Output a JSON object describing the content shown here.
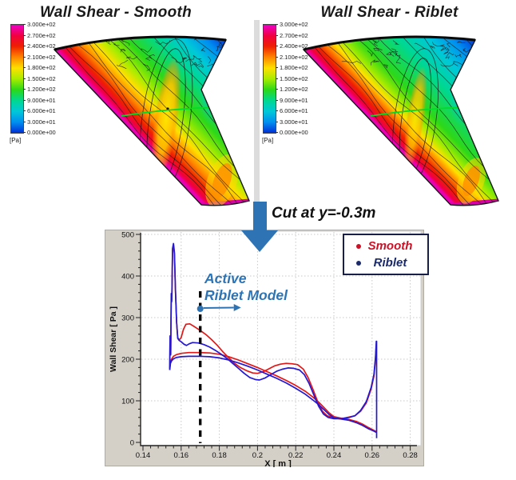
{
  "panels": {
    "smooth": {
      "title": "Wall Shear - Smooth"
    },
    "riblet": {
      "title": "Wall Shear - Riblet"
    }
  },
  "colorbar": {
    "unit": "[Pa]",
    "labels": [
      "3.000e+02",
      "2.700e+02",
      "2.400e+02",
      "2.100e+02",
      "1.800e+02",
      "1.500e+02",
      "1.200e+02",
      "9.000e+01",
      "6.000e+01",
      "3.000e+01",
      "0.000e+00"
    ],
    "colors": [
      "#ee00c8",
      "#f00040",
      "#ee2000",
      "#ff8600",
      "#ffe000",
      "#a8ec00",
      "#2ed818",
      "#00d890",
      "#00c8d8",
      "#0090f0",
      "#0030d8"
    ]
  },
  "cut_label": "Cut at y=-0.3m",
  "annotation": {
    "line1": "Active",
    "line2": "Riblet Model",
    "color": "#2e74b5"
  },
  "colors": {
    "accent_blue": "#2e74b5",
    "wing_cut_line_green": "#00dc28",
    "smooth_line": "#e21717",
    "riblet_line": "#2418d2"
  },
  "chart_data": {
    "type": "line",
    "title": "",
    "xlabel": "X [ m ]",
    "ylabel": "Wall Shear [ Pa ]",
    "xlim": [
      0.14,
      0.28
    ],
    "ylim": [
      0,
      500
    ],
    "grid": true,
    "xtick_values": [
      0.14,
      0.16,
      0.18,
      0.2,
      0.22,
      0.24,
      0.26,
      0.28
    ],
    "xtick_labels": [
      "0.14",
      "0.16",
      "0.18",
      "0.2",
      "0.22",
      "0.24",
      "0.26",
      "0.28"
    ],
    "ytick_values": [
      0,
      100,
      200,
      300,
      400,
      500
    ],
    "ytick_labels": [
      "0",
      "100",
      "200",
      "300",
      "400",
      "500"
    ],
    "cut_line_x": 0.17,
    "legend": {
      "position": "top-right",
      "entries": [
        {
          "label": "Smooth",
          "color": "#cc1127"
        },
        {
          "label": "Riblet",
          "color": "#1b2a6b"
        }
      ]
    },
    "series": [
      {
        "name": "Smooth upper surface",
        "color": "#e21717",
        "points": [
          [
            0.154,
            178
          ],
          [
            0.1542,
            252
          ],
          [
            0.1545,
            210
          ],
          [
            0.1548,
            352
          ],
          [
            0.1551,
            338
          ],
          [
            0.1555,
            462
          ],
          [
            0.156,
            474
          ],
          [
            0.1565,
            452
          ],
          [
            0.157,
            368
          ],
          [
            0.1576,
            288
          ],
          [
            0.1582,
            252
          ],
          [
            0.159,
            246
          ],
          [
            0.16,
            252
          ],
          [
            0.1612,
            272
          ],
          [
            0.1625,
            284
          ],
          [
            0.1645,
            285
          ],
          [
            0.167,
            278
          ],
          [
            0.17,
            269
          ],
          [
            0.173,
            259
          ],
          [
            0.176,
            247
          ],
          [
            0.179,
            233
          ],
          [
            0.182,
            217
          ],
          [
            0.185,
            203
          ],
          [
            0.188,
            190
          ],
          [
            0.191,
            180
          ],
          [
            0.1945,
            172
          ],
          [
            0.1975,
            167
          ],
          [
            0.2,
            166
          ],
          [
            0.203,
            170
          ],
          [
            0.206,
            177
          ],
          [
            0.209,
            184
          ],
          [
            0.212,
            188
          ],
          [
            0.215,
            190
          ],
          [
            0.218,
            189
          ],
          [
            0.221,
            187
          ],
          [
            0.224,
            176
          ],
          [
            0.2265,
            156
          ],
          [
            0.229,
            128
          ],
          [
            0.2315,
            98
          ],
          [
            0.234,
            75
          ],
          [
            0.2365,
            64
          ],
          [
            0.239,
            60
          ],
          [
            0.242,
            58
          ],
          [
            0.245,
            58
          ],
          [
            0.248,
            61
          ],
          [
            0.251,
            64
          ],
          [
            0.254,
            75
          ],
          [
            0.257,
            95
          ],
          [
            0.2595,
            128
          ],
          [
            0.261,
            160
          ],
          [
            0.2618,
            200
          ],
          [
            0.2622,
            236
          ]
        ]
      },
      {
        "name": "Smooth lower surface",
        "color": "#e21717",
        "points": [
          [
            0.154,
            178
          ],
          [
            0.1544,
            194
          ],
          [
            0.155,
            200
          ],
          [
            0.156,
            207
          ],
          [
            0.1575,
            211
          ],
          [
            0.16,
            214
          ],
          [
            0.164,
            216
          ],
          [
            0.17,
            216
          ],
          [
            0.175,
            215
          ],
          [
            0.18,
            212
          ],
          [
            0.185,
            206
          ],
          [
            0.19,
            198
          ],
          [
            0.195,
            189
          ],
          [
            0.2,
            180
          ],
          [
            0.205,
            170
          ],
          [
            0.21,
            160
          ],
          [
            0.215,
            149
          ],
          [
            0.22,
            137
          ],
          [
            0.225,
            123
          ],
          [
            0.229,
            109
          ],
          [
            0.232,
            97
          ],
          [
            0.235,
            83
          ],
          [
            0.2375,
            71
          ],
          [
            0.24,
            62
          ],
          [
            0.244,
            58
          ],
          [
            0.248,
            55
          ],
          [
            0.252,
            50
          ],
          [
            0.255,
            44
          ],
          [
            0.258,
            36
          ],
          [
            0.2605,
            30
          ],
          [
            0.2622,
            26
          ]
        ]
      },
      {
        "name": "Riblet upper surface",
        "color": "#2418d2",
        "points": [
          [
            0.154,
            174
          ],
          [
            0.1542,
            256
          ],
          [
            0.1545,
            212
          ],
          [
            0.1548,
            358
          ],
          [
            0.1551,
            342
          ],
          [
            0.1555,
            466
          ],
          [
            0.156,
            478
          ],
          [
            0.1565,
            456
          ],
          [
            0.157,
            370
          ],
          [
            0.1576,
            290
          ],
          [
            0.1582,
            250
          ],
          [
            0.159,
            245
          ],
          [
            0.16,
            242
          ],
          [
            0.1615,
            236
          ],
          [
            0.1628,
            233
          ],
          [
            0.1642,
            237
          ],
          [
            0.166,
            240
          ],
          [
            0.169,
            239
          ],
          [
            0.172,
            235
          ],
          [
            0.175,
            229
          ],
          [
            0.178,
            221
          ],
          [
            0.181,
            212
          ],
          [
            0.184,
            202
          ],
          [
            0.187,
            190
          ],
          [
            0.19,
            178
          ],
          [
            0.193,
            166
          ],
          [
            0.196,
            156
          ],
          [
            0.199,
            151
          ],
          [
            0.201,
            150
          ],
          [
            0.204,
            155
          ],
          [
            0.207,
            163
          ],
          [
            0.21,
            171
          ],
          [
            0.213,
            176
          ],
          [
            0.216,
            179
          ],
          [
            0.219,
            178
          ],
          [
            0.222,
            174
          ],
          [
            0.2245,
            163
          ],
          [
            0.227,
            142
          ],
          [
            0.2295,
            114
          ],
          [
            0.232,
            87
          ],
          [
            0.2345,
            68
          ],
          [
            0.237,
            60
          ],
          [
            0.24,
            57
          ],
          [
            0.244,
            57
          ],
          [
            0.248,
            60
          ],
          [
            0.251,
            64
          ],
          [
            0.254,
            77
          ],
          [
            0.257,
            98
          ],
          [
            0.2595,
            132
          ],
          [
            0.261,
            164
          ],
          [
            0.2618,
            205
          ],
          [
            0.2622,
            243
          ],
          [
            0.2624,
            243
          ],
          [
            0.2624,
            10
          ]
        ]
      },
      {
        "name": "Riblet lower surface",
        "color": "#2418d2",
        "points": [
          [
            0.154,
            174
          ],
          [
            0.1544,
            190
          ],
          [
            0.155,
            196
          ],
          [
            0.156,
            201
          ],
          [
            0.1575,
            204
          ],
          [
            0.16,
            206
          ],
          [
            0.164,
            207
          ],
          [
            0.17,
            207
          ],
          [
            0.175,
            206
          ],
          [
            0.18,
            203
          ],
          [
            0.185,
            198
          ],
          [
            0.19,
            191
          ],
          [
            0.195,
            183
          ],
          [
            0.2,
            174
          ],
          [
            0.205,
            164
          ],
          [
            0.21,
            154
          ],
          [
            0.215,
            143
          ],
          [
            0.22,
            130
          ],
          [
            0.225,
            116
          ],
          [
            0.229,
            102
          ],
          [
            0.232,
            91
          ],
          [
            0.235,
            78
          ],
          [
            0.2375,
            67
          ],
          [
            0.24,
            59
          ],
          [
            0.244,
            56
          ],
          [
            0.248,
            53
          ],
          [
            0.252,
            47
          ],
          [
            0.255,
            41
          ],
          [
            0.258,
            33
          ],
          [
            0.2605,
            28
          ],
          [
            0.2622,
            24
          ]
        ]
      }
    ]
  }
}
